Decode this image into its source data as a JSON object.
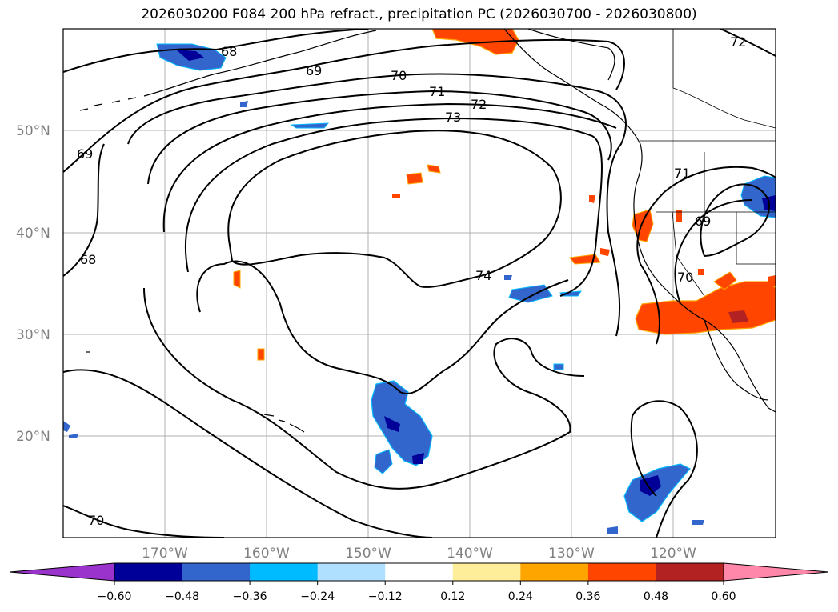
{
  "title": "2026030200 F084 200 hPa refract., precipitation PC (2026030700 - 2026030800)",
  "map": {
    "lat_labels": [
      "50°N",
      "40°N",
      "30°N",
      "20°N"
    ],
    "lon_labels": [
      "170°W",
      "160°W",
      "150°W",
      "140°W",
      "130°W",
      "120°W"
    ],
    "contour_labels": [
      "68",
      "69",
      "70",
      "71",
      "72",
      "73",
      "74",
      "72",
      "71",
      "69",
      "70",
      "69",
      "68",
      "70"
    ]
  },
  "colorbar": {
    "ticks": [
      "−0.60",
      "−0.48",
      "−0.36",
      "−0.24",
      "−0.12",
      "0.12",
      "0.24",
      "0.36",
      "0.48",
      "0.60"
    ],
    "colors": [
      "#9933cc",
      "#000099",
      "#3366cc",
      "#00bbff",
      "#b0e0ff",
      "#ffffff",
      "#ffee99",
      "#ffa500",
      "#ff4500",
      "#b22222",
      "#ff88aa",
      "#ff88aa"
    ]
  }
}
